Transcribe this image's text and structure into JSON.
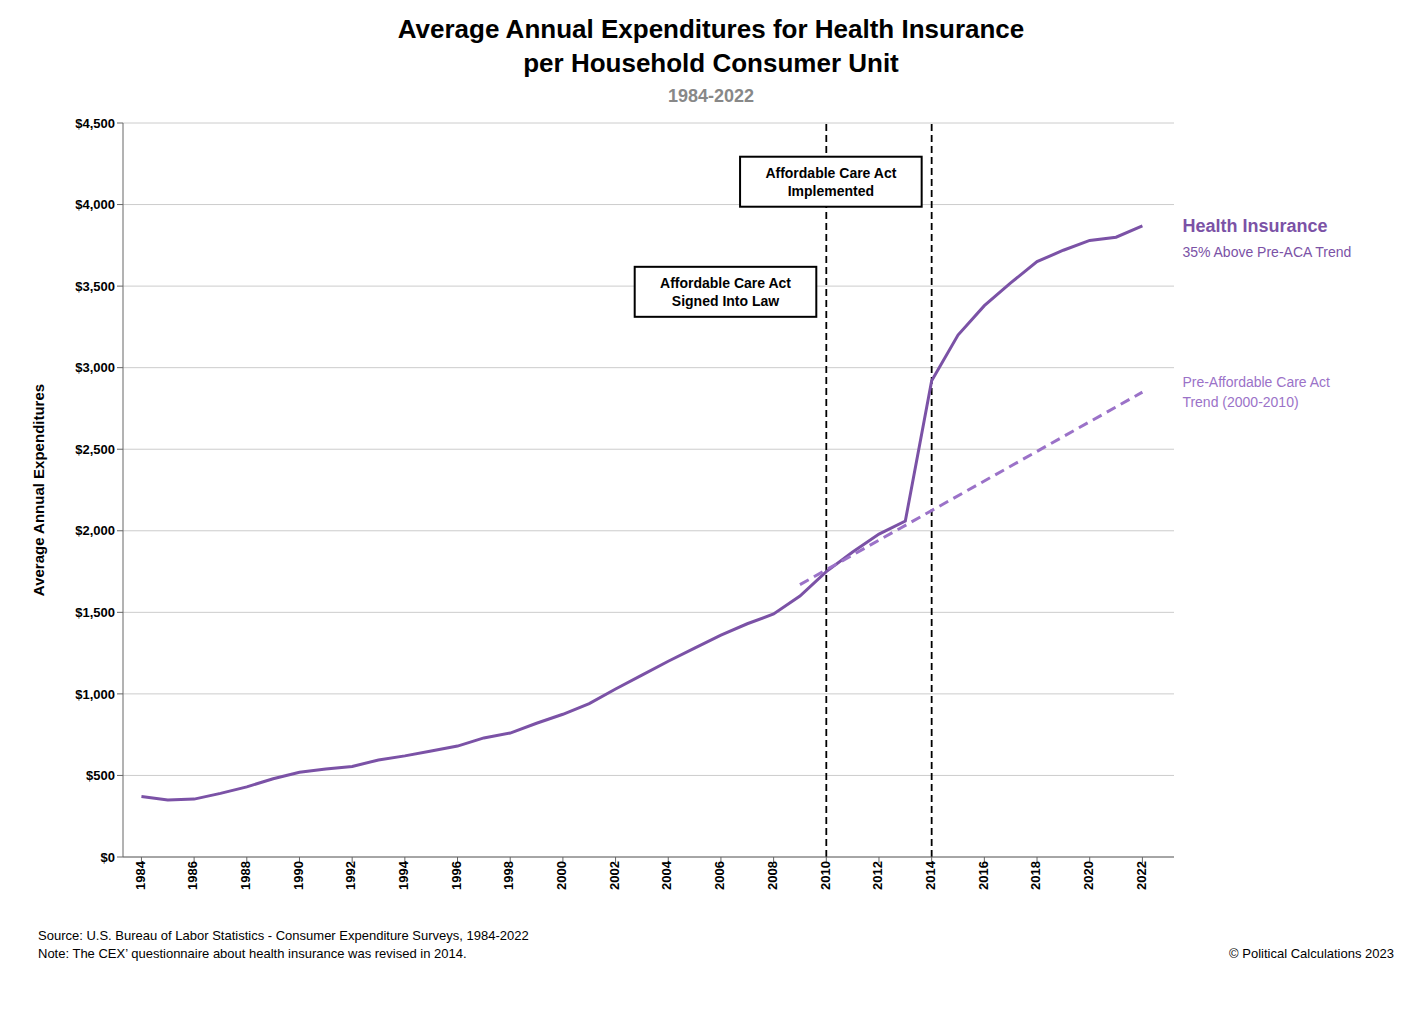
{
  "chart_data": {
    "type": "line",
    "title": "Average Annual Expenditures for Health Insurance\nper Household Consumer Unit",
    "subtitle": "1984-2022",
    "y_label": "Average Annual Expenditures",
    "source": "Source: U.S. Bureau of Labor Statistics - Consumer Expenditure Surveys, 1984-2022",
    "note": "Note: The CEX’ questionnaire about health insurance was revised in 2014.",
    "copyright": "© Political Calculations 2023",
    "x": [
      1984,
      1985,
      1986,
      1987,
      1988,
      1989,
      1990,
      1991,
      1992,
      1993,
      1994,
      1995,
      1996,
      1997,
      1998,
      1999,
      2000,
      2001,
      2002,
      2003,
      2004,
      2005,
      2006,
      2007,
      2008,
      2009,
      2010,
      2011,
      2012,
      2013,
      2014,
      2015,
      2016,
      2017,
      2018,
      2019,
      2020,
      2021,
      2022
    ],
    "series": [
      {
        "name": "Health Insurance",
        "annotation": "35% Above Pre-ACA Trend",
        "color": "#7B52A6",
        "line_style": "solid",
        "values": [
          371,
          350,
          355,
          390,
          430,
          480,
          520,
          540,
          555,
          595,
          620,
          650,
          680,
          730,
          760,
          820,
          875,
          940,
          1030,
          1115,
          1200,
          1280,
          1360,
          1430,
          1490,
          1600,
          1750,
          1870,
          1980,
          2060,
          2920,
          3200,
          3380,
          3520,
          3650,
          3720,
          3780,
          3800,
          3870
        ]
      },
      {
        "name": "Pre-Affordable Care Act\nTrend (2000-2010)",
        "color": "#9B72C8",
        "line_style": "dashed",
        "x": [
          2009,
          2022
        ],
        "values": [
          1670,
          2850
        ]
      }
    ],
    "events": [
      {
        "x": 2010,
        "label": "Affordable Care Act\nSigned Into Law"
      },
      {
        "x": 2014,
        "label": "Affordable Care Act\nImplemented"
      }
    ],
    "xlim": [
      1983.3,
      2023.2
    ],
    "xticks": [
      1984,
      1986,
      1988,
      1990,
      1992,
      1994,
      1996,
      1998,
      2000,
      2002,
      2004,
      2006,
      2008,
      2010,
      2012,
      2014,
      2016,
      2018,
      2020,
      2022
    ],
    "ylim": [
      0,
      4500
    ],
    "yticks": [
      {
        "value": 0,
        "label": "$0"
      },
      {
        "value": 500,
        "label": "$500"
      },
      {
        "value": 1000,
        "label": "$1,000"
      },
      {
        "value": 1500,
        "label": "$1,500"
      },
      {
        "value": 2000,
        "label": "$2,000"
      },
      {
        "value": 2500,
        "label": "$2,500"
      },
      {
        "value": 3000,
        "label": "$3,000"
      },
      {
        "value": 3500,
        "label": "$3,500"
      },
      {
        "value": 4000,
        "label": "$4,000"
      },
      {
        "value": 4500,
        "label": "$4,500"
      }
    ],
    "grid": "y"
  }
}
